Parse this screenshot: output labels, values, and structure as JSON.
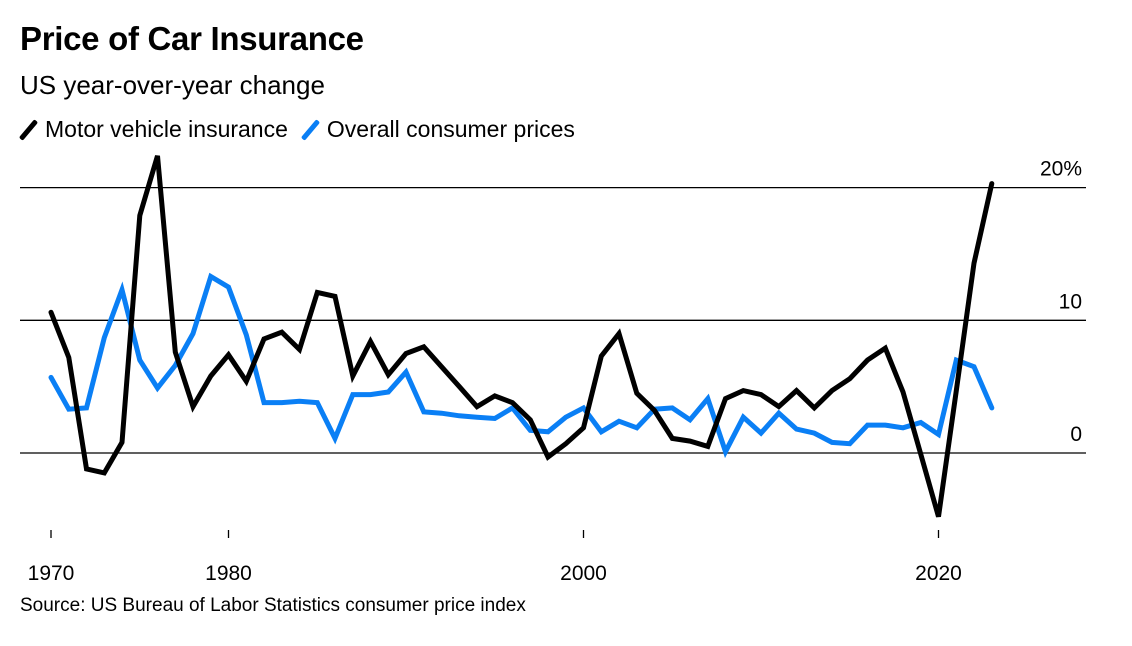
{
  "title": "Price of Car Insurance",
  "subtitle": "US year-over-year change",
  "source": "Source: US Bureau of Labor Statistics consumer price index",
  "colors": {
    "insurance": "#000000",
    "cpi": "#0a7ff5",
    "grid": "#000000"
  },
  "chart_data": {
    "type": "line",
    "title": "Price of Car Insurance",
    "subtitle": "US year-over-year change",
    "xlabel": "",
    "ylabel": "",
    "xlim": [
      1970,
      2023
    ],
    "ylim": [
      -6,
      22
    ],
    "grid": true,
    "legend": "top-left",
    "legend_entries": [
      "Motor vehicle insurance",
      "Overall consumer prices"
    ],
    "yticks": [
      {
        "value": 20,
        "label": "20%"
      },
      {
        "value": 10,
        "label": "10"
      },
      {
        "value": 0,
        "label": "0"
      }
    ],
    "xticks": [
      {
        "value": 1970,
        "label": "1970"
      },
      {
        "value": 1980,
        "label": "1980"
      },
      {
        "value": 2000,
        "label": "2000"
      },
      {
        "value": 2020,
        "label": "2020"
      }
    ],
    "x": [
      1970,
      1971,
      1972,
      1973,
      1974,
      1975,
      1976,
      1977,
      1978,
      1979,
      1980,
      1981,
      1982,
      1983,
      1984,
      1985,
      1986,
      1987,
      1988,
      1989,
      1990,
      1991,
      1992,
      1993,
      1994,
      1995,
      1996,
      1997,
      1998,
      1999,
      2000,
      2001,
      2002,
      2003,
      2004,
      2005,
      2006,
      2007,
      2008,
      2009,
      2010,
      2011,
      2012,
      2013,
      2014,
      2015,
      2016,
      2017,
      2018,
      2019,
      2020,
      2021,
      2022,
      2023
    ],
    "series": [
      {
        "name": "Motor vehicle insurance",
        "color": "#000000",
        "values": [
          10.6,
          7.2,
          -1.2,
          -1.5,
          0.8,
          17.9,
          22.4,
          7.6,
          3.5,
          5.8,
          7.4,
          5.4,
          8.6,
          9.1,
          7.8,
          12.1,
          11.8,
          5.8,
          8.4,
          5.9,
          7.5,
          8.0,
          6.5,
          5.0,
          3.5,
          4.3,
          3.8,
          2.5,
          -0.3,
          0.7,
          1.9,
          7.3,
          9.0,
          4.5,
          3.2,
          1.1,
          0.9,
          0.5,
          4.1,
          4.7,
          4.4,
          3.5,
          4.7,
          3.4,
          4.7,
          5.6,
          7.0,
          7.9,
          4.6,
          -0.1,
          -4.8,
          4.7,
          14.3,
          20.3
        ]
      },
      {
        "name": "Overall consumer prices",
        "color": "#0a7ff5",
        "values": [
          5.7,
          3.3,
          3.4,
          8.7,
          12.3,
          7.0,
          4.9,
          6.6,
          9.0,
          13.3,
          12.5,
          8.9,
          3.8,
          3.8,
          3.9,
          3.8,
          1.1,
          4.4,
          4.4,
          4.6,
          6.1,
          3.1,
          3.0,
          2.8,
          2.7,
          2.6,
          3.4,
          1.7,
          1.6,
          2.7,
          3.4,
          1.6,
          2.4,
          1.9,
          3.3,
          3.4,
          2.5,
          4.1,
          0.1,
          2.7,
          1.5,
          3.0,
          1.8,
          1.5,
          0.8,
          0.7,
          2.1,
          2.1,
          1.9,
          2.3,
          1.4,
          7.0,
          6.5,
          3.4
        ]
      }
    ]
  }
}
